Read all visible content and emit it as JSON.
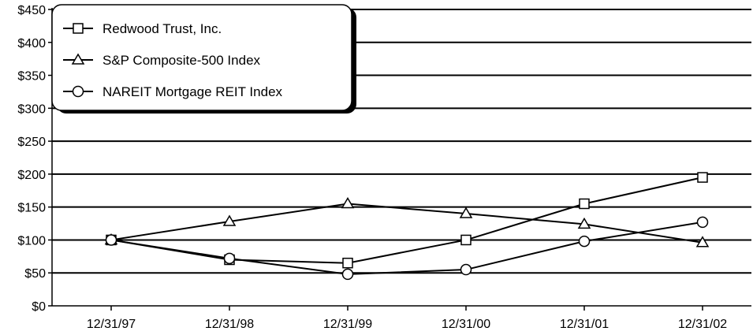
{
  "chart_data": {
    "type": "line",
    "categories": [
      "12/31/97",
      "12/31/98",
      "12/31/99",
      "12/31/00",
      "12/31/01",
      "12/31/02"
    ],
    "ylim": [
      0,
      450
    ],
    "yticks": [
      0,
      50,
      100,
      150,
      200,
      250,
      300,
      350,
      400,
      450
    ],
    "ytick_labels": [
      "$0",
      "$50",
      "$100",
      "$150",
      "$200",
      "$250",
      "$300",
      "$350",
      "$400",
      "$450"
    ],
    "grid": "horizontal",
    "legend_position": "top-left",
    "series": [
      {
        "name": "Redwood Trust, Inc.",
        "marker": "square",
        "values": [
          100,
          70,
          65,
          100,
          155,
          195
        ]
      },
      {
        "name": "S&P Composite-500 Index",
        "marker": "triangle",
        "values": [
          100,
          128,
          155,
          140,
          124,
          96
        ]
      },
      {
        "name": "NAREIT Mortgage REIT Index",
        "marker": "circle",
        "values": [
          100,
          72,
          48,
          55,
          98,
          127
        ]
      }
    ],
    "colors": {
      "line": "#000000",
      "marker_fill": "#ffffff",
      "background": "#ffffff"
    }
  }
}
